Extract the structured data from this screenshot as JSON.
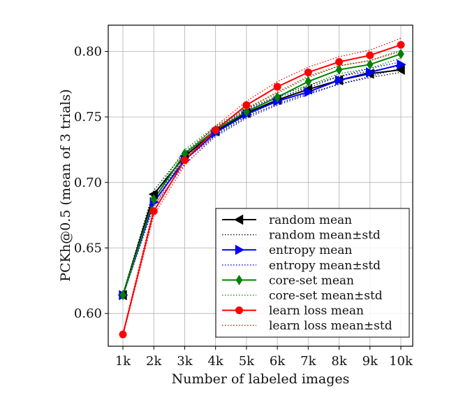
{
  "chart_data": {
    "type": "line",
    "title": "",
    "xlabel": "Number of labeled images",
    "ylabel": "PCKh@0.5 (mean of 3 trials)",
    "categories": [
      "1k",
      "2k",
      "3k",
      "4k",
      "5k",
      "6k",
      "7k",
      "8k",
      "9k",
      "10k"
    ],
    "ylim": [
      0.575,
      0.82
    ],
    "yticks": [
      0.6,
      0.65,
      0.7,
      0.75,
      0.8
    ],
    "ytick_labels": [
      "0.60",
      "0.65",
      "0.70",
      "0.75",
      "0.80"
    ],
    "grid": true,
    "legend_position": "lower-right",
    "series": [
      {
        "name": "random mean",
        "std_name": "random mean±std",
        "color": "#000000",
        "marker": "triangle-left",
        "values": [
          0.614,
          0.691,
          0.72,
          0.739,
          0.753,
          0.763,
          0.771,
          0.778,
          0.783,
          0.786
        ],
        "upper": [
          0.615,
          0.694,
          0.723,
          0.742,
          0.756,
          0.766,
          0.774,
          0.781,
          0.785,
          0.789
        ],
        "lower": [
          0.613,
          0.688,
          0.717,
          0.736,
          0.75,
          0.76,
          0.768,
          0.775,
          0.78,
          0.784
        ]
      },
      {
        "name": "entropy mean",
        "std_name": "entropy mean±std",
        "color": "#0000ff",
        "marker": "triangle-right",
        "values": [
          0.614,
          0.685,
          0.717,
          0.738,
          0.752,
          0.762,
          0.769,
          0.778,
          0.784,
          0.79
        ],
        "upper": [
          0.615,
          0.688,
          0.72,
          0.741,
          0.755,
          0.765,
          0.772,
          0.781,
          0.787,
          0.792
        ],
        "lower": [
          0.613,
          0.682,
          0.714,
          0.735,
          0.749,
          0.759,
          0.767,
          0.775,
          0.781,
          0.787
        ]
      },
      {
        "name": "core-set mean",
        "std_name": "core-set mean±std",
        "color": "#008000",
        "marker": "diamond",
        "values": [
          0.614,
          0.687,
          0.722,
          0.74,
          0.754,
          0.765,
          0.777,
          0.786,
          0.79,
          0.798
        ],
        "upper": [
          0.615,
          0.69,
          0.725,
          0.743,
          0.757,
          0.768,
          0.78,
          0.789,
          0.793,
          0.801
        ],
        "lower": [
          0.613,
          0.684,
          0.719,
          0.737,
          0.751,
          0.762,
          0.774,
          0.783,
          0.787,
          0.795
        ]
      },
      {
        "name": "learn loss mean",
        "std_name": "learn loss mean±std",
        "color": "#ff0000",
        "marker": "circle",
        "values": [
          0.584,
          0.678,
          0.717,
          0.74,
          0.759,
          0.773,
          0.784,
          0.792,
          0.797,
          0.805
        ],
        "upper": [
          0.585,
          0.681,
          0.721,
          0.743,
          0.762,
          0.777,
          0.788,
          0.796,
          0.801,
          0.81
        ],
        "lower": [
          0.583,
          0.675,
          0.713,
          0.737,
          0.756,
          0.769,
          0.781,
          0.789,
          0.793,
          0.8
        ]
      }
    ]
  }
}
